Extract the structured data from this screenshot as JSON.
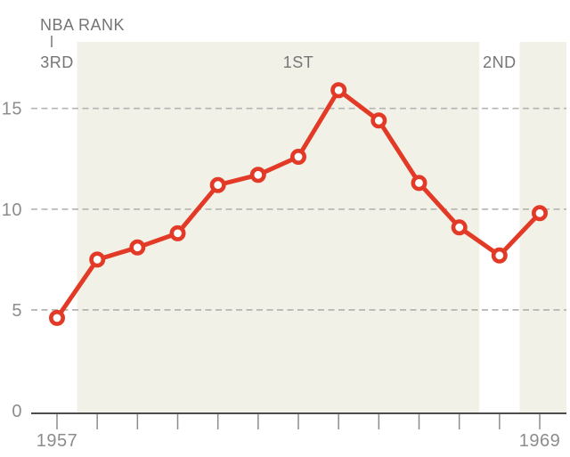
{
  "chart": {
    "title": "NBA RANK",
    "colors": {
      "line": "#e23a26",
      "marker_fill": "#ffffff",
      "band": "#f2f1e8",
      "grid": "#b4b4b0",
      "axis": "#4d4d4d",
      "tick": "#8c8c8c",
      "axis_label": "#8c8c8c",
      "annotation": "#757575",
      "background": "#ffffff"
    }
  },
  "chart_data": {
    "type": "line",
    "title": "NBA RANK",
    "xlabel": "",
    "ylabel": "",
    "x": [
      1957,
      1958,
      1959,
      1960,
      1961,
      1962,
      1963,
      1964,
      1965,
      1966,
      1967,
      1968,
      1969
    ],
    "values": [
      4.6,
      7.5,
      8.1,
      8.8,
      11.2,
      11.7,
      12.6,
      15.9,
      14.4,
      11.3,
      9.1,
      7.7,
      9.8
    ],
    "ylim": [
      0,
      18
    ],
    "yticks": [
      0,
      5,
      10,
      15
    ],
    "xtick_years": [
      1957,
      1958,
      1959,
      1960,
      1961,
      1962,
      1963,
      1964,
      1965,
      1966,
      1967,
      1968,
      1969
    ],
    "xtick_labels_shown": [
      "1957",
      "1969"
    ],
    "grid": "horizontal-dashed",
    "legend": "none",
    "rank_periods": [
      {
        "label": "3RD",
        "start": 1957,
        "end": 1957,
        "shaded": false,
        "label_year": 1957
      },
      {
        "label": "1ST",
        "start": 1958,
        "end": 1967,
        "shaded": true,
        "label_year": 1963
      },
      {
        "label": "2ND",
        "start": 1968,
        "end": 1968,
        "shaded": false,
        "label_year": 1968
      },
      {
        "label": "",
        "start": 1969,
        "end": 1969,
        "shaded": true,
        "label_year": null
      }
    ]
  }
}
